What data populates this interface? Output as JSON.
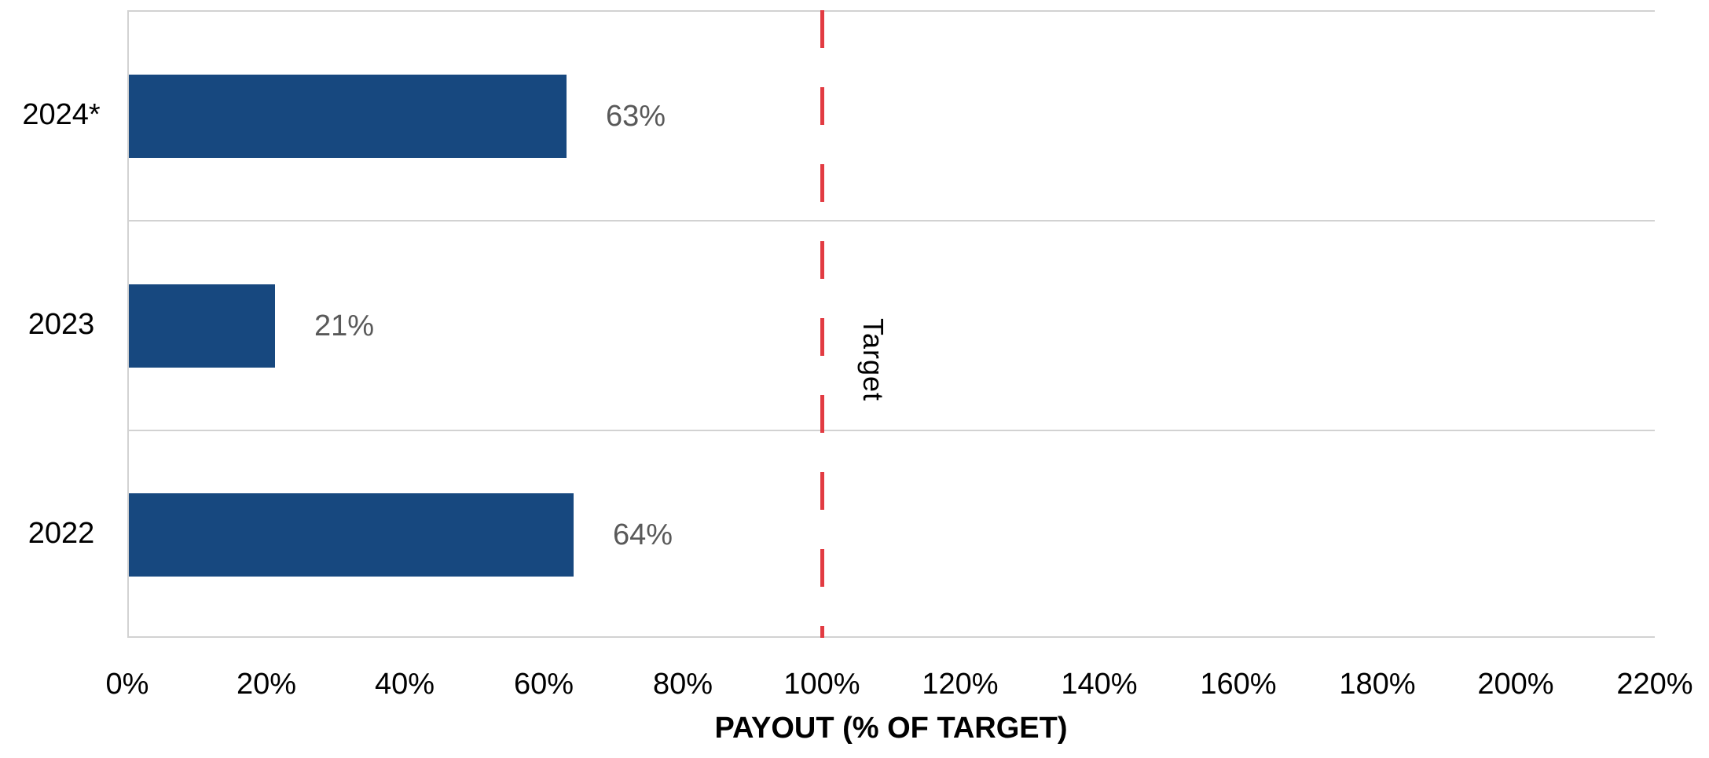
{
  "chart_data": {
    "type": "bar",
    "orientation": "horizontal",
    "title": "",
    "categories": [
      "2024*",
      "2023",
      "2022"
    ],
    "values": [
      63,
      21,
      64
    ],
    "data_labels": [
      "63%",
      "21%",
      "64%"
    ],
    "xlabel": "PAYOUT (% OF TARGET)",
    "ylabel": "",
    "xlim": [
      0,
      220
    ],
    "x_tick_step": 20,
    "x_tick_labels": [
      "0%",
      "20%",
      "40%",
      "60%",
      "80%",
      "100%",
      "120%",
      "140%",
      "160%",
      "180%",
      "200%",
      "220%"
    ],
    "grid": "horizontal-row-separators-on",
    "legend": "none",
    "reference_line": {
      "value": 100,
      "label": "Target",
      "style": "dashed",
      "color": "#e23b42"
    },
    "colors": {
      "bar": "#17487f",
      "data_label": "#595959",
      "gridline": "#d2d2d2",
      "axis_text": "#000000"
    }
  }
}
